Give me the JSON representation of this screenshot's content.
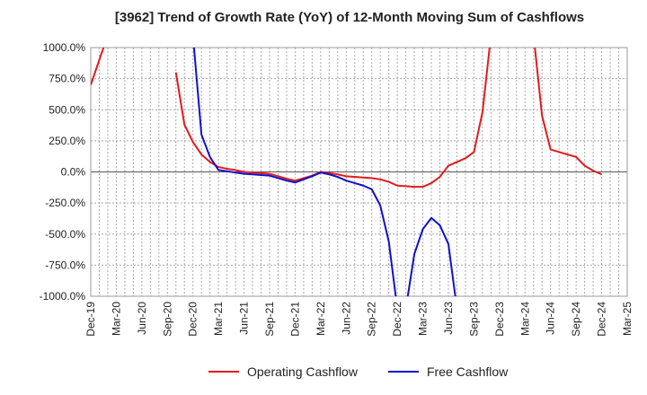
{
  "chart_data": {
    "type": "line",
    "title": "[3962]  Trend of Growth Rate (YoY) of 12-Month Moving Sum of Cashflows",
    "x_tick_labels": [
      "Dec-19",
      "Mar-20",
      "Jun-20",
      "Sep-20",
      "Dec-20",
      "Mar-21",
      "Jun-21",
      "Sep-21",
      "Dec-21",
      "Mar-22",
      "Jun-22",
      "Sep-22",
      "Dec-22",
      "Mar-23",
      "Jun-23",
      "Sep-23",
      "Dec-23",
      "Mar-24",
      "Jun-24",
      "Sep-24",
      "Dec-24",
      "Mar-25"
    ],
    "y_tick_labels": [
      "1000.0%",
      "750.0%",
      "500.0%",
      "250.0%",
      "0.0%",
      "-250.0%",
      "-500.0%",
      "-750.0%",
      "-1000.0%"
    ],
    "ylim": [
      -1000,
      1000
    ],
    "y_ticks": [
      1000,
      750,
      500,
      250,
      0,
      -250,
      -500,
      -750,
      -1000
    ],
    "grid": true,
    "legend_position": "bottom",
    "series": [
      {
        "name": "Operating Cashflow",
        "color": "#e31a1c",
        "points": [
          [
            "2019-12",
            700
          ],
          [
            "2020-01",
            900
          ],
          [
            "2020-02",
            1100
          ],
          null,
          [
            "2020-10",
            800
          ],
          [
            "2020-11",
            380
          ],
          [
            "2020-12",
            240
          ],
          [
            "2021-01",
            140
          ],
          [
            "2021-02",
            80
          ],
          [
            "2021-03",
            40
          ],
          [
            "2021-04",
            25
          ],
          [
            "2021-05",
            15
          ],
          [
            "2021-06",
            0
          ],
          [
            "2021-07",
            -5
          ],
          [
            "2021-08",
            -10
          ],
          [
            "2021-09",
            -15
          ],
          [
            "2021-10",
            -35
          ],
          [
            "2021-11",
            -55
          ],
          [
            "2021-12",
            -70
          ],
          [
            "2022-01",
            -50
          ],
          [
            "2022-02",
            -30
          ],
          [
            "2022-03",
            0
          ],
          [
            "2022-04",
            -10
          ],
          [
            "2022-05",
            -20
          ],
          [
            "2022-06",
            -35
          ],
          [
            "2022-07",
            -40
          ],
          [
            "2022-08",
            -45
          ],
          [
            "2022-09",
            -50
          ],
          [
            "2022-10",
            -60
          ],
          [
            "2022-11",
            -80
          ],
          [
            "2022-12",
            -110
          ],
          [
            "2023-01",
            -115
          ],
          [
            "2023-02",
            -120
          ],
          [
            "2023-03",
            -120
          ],
          [
            "2023-04",
            -90
          ],
          [
            "2023-05",
            -40
          ],
          [
            "2023-06",
            50
          ],
          [
            "2023-07",
            80
          ],
          [
            "2023-08",
            110
          ],
          [
            "2023-09",
            160
          ],
          [
            "2023-10",
            480
          ],
          [
            "2023-11",
            1100
          ],
          null,
          [
            "2024-04",
            1100
          ],
          [
            "2024-05",
            450
          ],
          [
            "2024-06",
            180
          ],
          [
            "2024-07",
            160
          ],
          [
            "2024-08",
            140
          ],
          [
            "2024-09",
            120
          ],
          [
            "2024-10",
            50
          ],
          [
            "2024-11",
            10
          ],
          [
            "2024-12",
            -20
          ]
        ]
      },
      {
        "name": "Free Cashflow",
        "color": "#1010cc",
        "points": [
          [
            "2020-12",
            1100
          ],
          [
            "2021-01",
            300
          ],
          [
            "2021-02",
            120
          ],
          [
            "2021-03",
            15
          ],
          [
            "2021-04",
            5
          ],
          [
            "2021-05",
            -5
          ],
          [
            "2021-06",
            -15
          ],
          [
            "2021-07",
            -20
          ],
          [
            "2021-08",
            -25
          ],
          [
            "2021-09",
            -30
          ],
          [
            "2021-10",
            -50
          ],
          [
            "2021-11",
            -70
          ],
          [
            "2021-12",
            -85
          ],
          [
            "2022-01",
            -60
          ],
          [
            "2022-02",
            -35
          ],
          [
            "2022-03",
            -5
          ],
          [
            "2022-04",
            -20
          ],
          [
            "2022-05",
            -40
          ],
          [
            "2022-06",
            -70
          ],
          [
            "2022-07",
            -90
          ],
          [
            "2022-08",
            -110
          ],
          [
            "2022-09",
            -140
          ],
          [
            "2022-10",
            -270
          ],
          [
            "2022-11",
            -560
          ],
          [
            "2022-12",
            -1100
          ],
          null,
          [
            "2023-01",
            -1100
          ],
          [
            "2023-02",
            -660
          ],
          [
            "2023-03",
            -460
          ],
          [
            "2023-04",
            -370
          ],
          [
            "2023-05",
            -430
          ],
          [
            "2023-06",
            -580
          ],
          [
            "2023-07",
            -1100
          ]
        ]
      }
    ]
  }
}
